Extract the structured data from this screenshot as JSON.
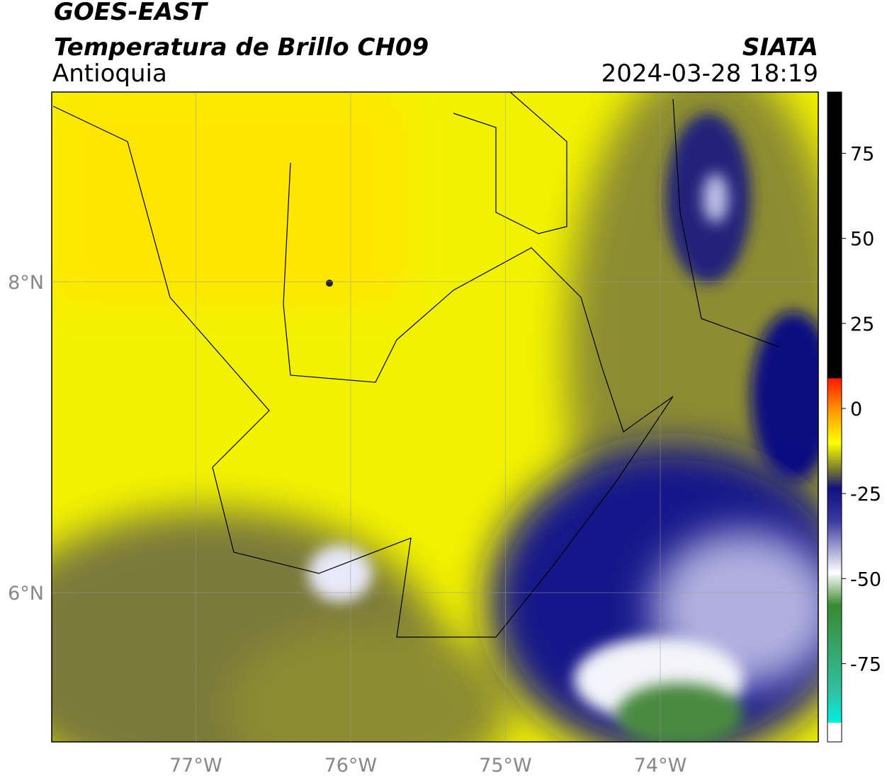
{
  "header": {
    "title": "GOES-EAST",
    "subtitle": "Temperatura de Brillo CH09",
    "region": "Antioquia",
    "org": "SIATA",
    "datetime": "2024-03-28 18:19"
  },
  "map": {
    "xlim": [
      -77.93,
      -72.98
    ],
    "ylim": [
      5.04,
      9.22
    ],
    "xticks": [
      {
        "value": -77,
        "label": "77°W"
      },
      {
        "value": -76,
        "label": "76°W"
      },
      {
        "value": -75,
        "label": "75°W"
      },
      {
        "value": -74,
        "label": "74°W"
      }
    ],
    "yticks": [
      {
        "value": 8,
        "label": "8°N"
      },
      {
        "value": 6,
        "label": "6°N"
      }
    ],
    "grid": true
  },
  "colorbar": {
    "lim": [
      -98,
      93
    ],
    "ticks": [
      75,
      50,
      25,
      0,
      -25,
      -50,
      -75
    ]
  }
}
